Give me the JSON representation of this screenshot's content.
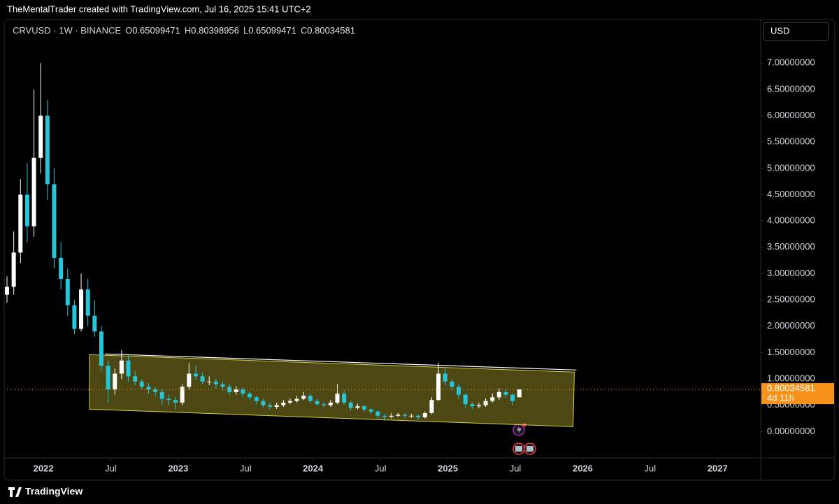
{
  "header": {
    "caption": "TheMentalTrader created with TradingView.com, Jul 16, 2025 15:41 UTC+2"
  },
  "chart_data": {
    "type": "candlestick",
    "legend": {
      "symbol": "CRVUSD · 1W · BINANCE",
      "ohlc": [
        {
          "key": "O",
          "value": 0.65099471
        },
        {
          "key": "H",
          "value": 0.80398956
        },
        {
          "key": "L",
          "value": 0.65099471
        },
        {
          "key": "C",
          "value": 0.80034581
        }
      ]
    },
    "currency": "USD",
    "x": [
      2021.73,
      2021.78,
      2021.83,
      2021.88,
      2021.93,
      2021.98,
      2022.03,
      2022.08,
      2022.13,
      2022.18,
      2022.23,
      2022.28,
      2022.33,
      2022.38,
      2022.43,
      2022.48,
      2022.53,
      2022.58,
      2022.63,
      2022.68,
      2022.73,
      2022.78,
      2022.83,
      2022.88,
      2022.93,
      2022.98,
      2023.03,
      2023.08,
      2023.13,
      2023.18,
      2023.23,
      2023.28,
      2023.33,
      2023.38,
      2023.43,
      2023.48,
      2023.53,
      2023.58,
      2023.63,
      2023.68,
      2023.73,
      2023.78,
      2023.83,
      2023.88,
      2023.93,
      2023.98,
      2024.03,
      2024.08,
      2024.13,
      2024.18,
      2024.23,
      2024.28,
      2024.33,
      2024.38,
      2024.43,
      2024.48,
      2024.53,
      2024.58,
      2024.63,
      2024.68,
      2024.73,
      2024.78,
      2024.83,
      2024.88,
      2024.93,
      2024.98,
      2025.03,
      2025.08,
      2025.13,
      2025.18,
      2025.23,
      2025.28,
      2025.33,
      2025.38,
      2025.43,
      2025.48,
      2025.53
    ],
    "open": [
      2.6,
      2.75,
      3.4,
      4.5,
      3.9,
      5.2,
      6.0,
      4.7,
      3.3,
      2.9,
      2.4,
      1.95,
      2.7,
      2.2,
      1.9,
      1.25,
      0.8,
      1.1,
      1.35,
      1.05,
      0.95,
      0.85,
      0.8,
      0.75,
      0.62,
      0.6,
      0.55,
      0.85,
      1.1,
      1.05,
      0.95,
      0.95,
      0.9,
      0.85,
      0.75,
      0.8,
      0.72,
      0.65,
      0.58,
      0.5,
      0.47,
      0.5,
      0.55,
      0.58,
      0.62,
      0.68,
      0.58,
      0.52,
      0.5,
      0.55,
      0.72,
      0.55,
      0.45,
      0.48,
      0.42,
      0.38,
      0.3,
      0.28,
      0.3,
      0.32,
      0.3,
      0.3,
      0.27,
      0.35,
      0.6,
      1.1,
      0.95,
      0.85,
      0.7,
      0.52,
      0.48,
      0.5,
      0.58,
      0.65,
      0.75,
      0.7,
      0.65099471
    ],
    "high": [
      2.95,
      3.8,
      4.8,
      5.1,
      6.5,
      7.0,
      6.3,
      5.0,
      3.6,
      3.1,
      2.5,
      3.0,
      2.9,
      2.5,
      2.0,
      1.35,
      1.2,
      1.55,
      1.45,
      1.15,
      1.0,
      0.92,
      0.85,
      0.8,
      0.7,
      0.65,
      0.9,
      1.3,
      1.25,
      1.12,
      1.05,
      1.0,
      0.95,
      0.9,
      0.86,
      0.84,
      0.76,
      0.68,
      0.62,
      0.54,
      0.55,
      0.6,
      0.63,
      0.68,
      0.75,
      0.72,
      0.62,
      0.56,
      0.6,
      0.9,
      0.78,
      0.58,
      0.53,
      0.5,
      0.45,
      0.4,
      0.33,
      0.35,
      0.36,
      0.35,
      0.34,
      0.32,
      0.38,
      0.65,
      1.3,
      1.2,
      1.0,
      0.9,
      0.72,
      0.56,
      0.55,
      0.63,
      0.72,
      0.82,
      0.8,
      0.72,
      0.80398956
    ],
    "low": [
      2.45,
      2.6,
      3.2,
      3.6,
      3.7,
      4.9,
      4.4,
      3.1,
      2.7,
      2.2,
      1.85,
      1.9,
      2.0,
      1.8,
      1.15,
      0.55,
      0.7,
      1.0,
      0.95,
      0.88,
      0.8,
      0.72,
      0.68,
      0.5,
      0.5,
      0.42,
      0.5,
      0.8,
      0.98,
      0.9,
      0.88,
      0.82,
      0.78,
      0.7,
      0.7,
      0.66,
      0.6,
      0.52,
      0.45,
      0.42,
      0.43,
      0.47,
      0.52,
      0.55,
      0.6,
      0.54,
      0.48,
      0.46,
      0.47,
      0.52,
      0.5,
      0.4,
      0.42,
      0.38,
      0.33,
      0.25,
      0.2,
      0.25,
      0.27,
      0.26,
      0.26,
      0.23,
      0.25,
      0.33,
      0.58,
      0.88,
      0.78,
      0.62,
      0.45,
      0.42,
      0.44,
      0.47,
      0.55,
      0.6,
      0.64,
      0.5,
      0.65099471
    ],
    "close": [
      2.75,
      3.4,
      4.5,
      3.9,
      5.2,
      6.0,
      4.7,
      3.3,
      2.9,
      2.4,
      1.95,
      2.7,
      2.2,
      1.9,
      1.25,
      0.8,
      1.1,
      1.35,
      1.05,
      0.95,
      0.85,
      0.8,
      0.75,
      0.62,
      0.6,
      0.55,
      0.85,
      1.1,
      1.05,
      0.95,
      0.95,
      0.9,
      0.85,
      0.75,
      0.8,
      0.72,
      0.65,
      0.58,
      0.5,
      0.47,
      0.5,
      0.55,
      0.58,
      0.62,
      0.68,
      0.58,
      0.52,
      0.5,
      0.55,
      0.72,
      0.55,
      0.45,
      0.48,
      0.42,
      0.38,
      0.3,
      0.28,
      0.3,
      0.32,
      0.3,
      0.3,
      0.27,
      0.35,
      0.6,
      1.1,
      0.95,
      0.85,
      0.7,
      0.52,
      0.48,
      0.5,
      0.58,
      0.65,
      0.75,
      0.7,
      0.58,
      0.80034581
    ],
    "up_color": "#ffffff",
    "down_color": "#26c6da",
    "xlim": [
      2021.73,
      2027.32
    ],
    "xticks": [
      {
        "value": 2022,
        "label": "2022"
      },
      {
        "value": 2022.5,
        "label": "Jul"
      },
      {
        "value": 2023,
        "label": "2023"
      },
      {
        "value": 2023.5,
        "label": "Jul"
      },
      {
        "value": 2024,
        "label": "2024"
      },
      {
        "value": 2024.5,
        "label": "Jul"
      },
      {
        "value": 2025,
        "label": "2025"
      },
      {
        "value": 2025.5,
        "label": "Jul"
      },
      {
        "value": 2026,
        "label": "2026"
      },
      {
        "value": 2026.5,
        "label": "Jul"
      },
      {
        "value": 2027,
        "label": "2027"
      }
    ],
    "ylim": [
      -0.5,
      7.8
    ],
    "yticks": [
      {
        "value": 0,
        "label": "0.00000000"
      },
      {
        "value": 0.5,
        "label": "0.50000000"
      },
      {
        "value": 1,
        "label": "1.00000000"
      },
      {
        "value": 1.5,
        "label": "1.50000000"
      },
      {
        "value": 2,
        "label": "2.00000000"
      },
      {
        "value": 2.5,
        "label": "2.50000000"
      },
      {
        "value": 3,
        "label": "3.00000000"
      },
      {
        "value": 3.5,
        "label": "3.50000000"
      },
      {
        "value": 4,
        "label": "4.00000000"
      },
      {
        "value": 4.5,
        "label": "4.50000000"
      },
      {
        "value": 5,
        "label": "5.00000000"
      },
      {
        "value": 5.5,
        "label": "5.50000000"
      },
      {
        "value": 6,
        "label": "6.00000000"
      },
      {
        "value": 6.5,
        "label": "6.50000000"
      },
      {
        "value": 7,
        "label": "7.00000000"
      }
    ],
    "last_price": {
      "value": 0.80034581,
      "countdown": "4d 11h",
      "color": "#f7931a"
    },
    "drawings": {
      "channel": {
        "points": [
          [
            2022.342,
            1.46
          ],
          [
            2025.938,
            1.13
          ],
          [
            2025.928,
            0.093
          ],
          [
            2022.342,
            0.425
          ]
        ],
        "fill": "rgba(240,225,60,0.32)",
        "stroke": "#d8cf48"
      },
      "trendline": {
        "points": [
          [
            2022.456,
            1.474
          ],
          [
            2025.953,
            1.169
          ]
        ],
        "color": "#ffffff"
      }
    }
  },
  "footer": {
    "brand": "TradingView"
  }
}
